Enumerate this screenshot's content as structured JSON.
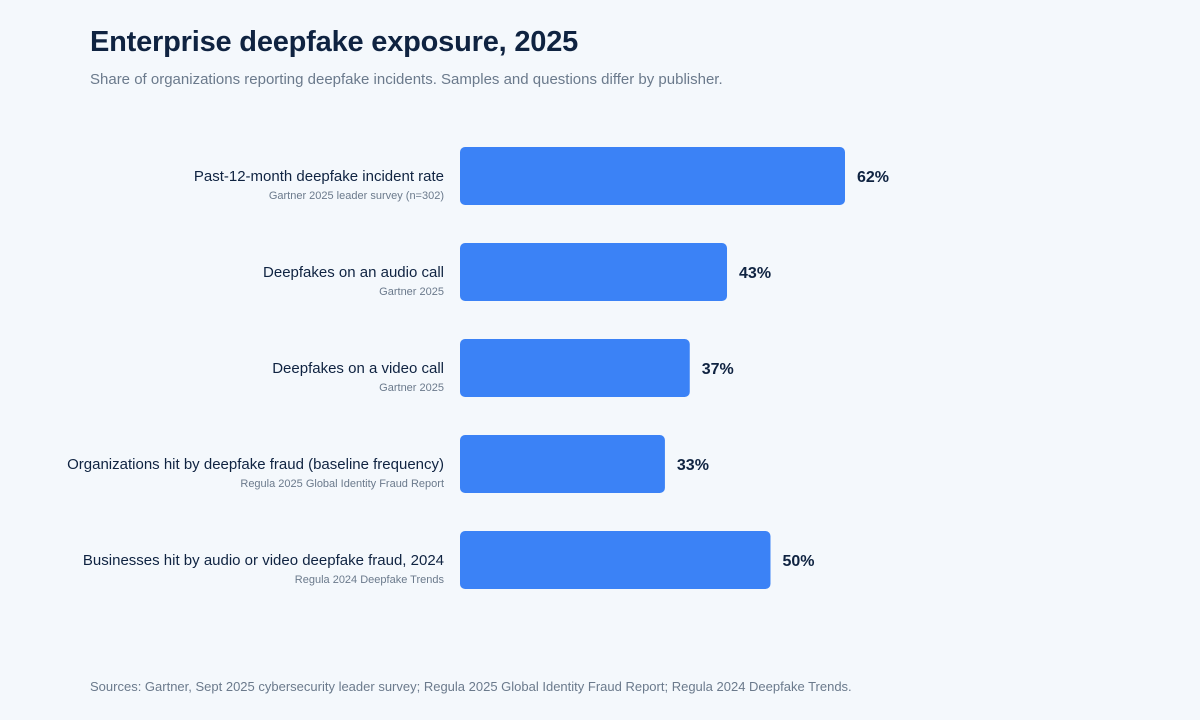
{
  "chart_data": {
    "type": "bar",
    "orientation": "horizontal",
    "title": "Enterprise deepfake exposure, 2025",
    "subtitle": "Share of organizations reporting deepfake incidents. Samples and questions differ by publisher.",
    "categories": [
      "Past-12-month deepfake incident rate",
      "Deepfakes on an audio call",
      "Deepfakes on a video call",
      "Organizations hit by deepfake fraud (baseline frequency)",
      "Businesses hit by audio or video deepfake fraud, 2024"
    ],
    "sources": [
      "Gartner 2025 leader survey (n=302)",
      "Gartner 2025",
      "Gartner 2025",
      "Regula 2025 Global Identity Fraud Report",
      "Regula 2024 Deepfake Trends"
    ],
    "values": [
      62,
      43,
      37,
      33,
      50
    ],
    "value_labels": [
      "62%",
      "43%",
      "37%",
      "33%",
      "50%"
    ],
    "unit": "%",
    "xlim": [
      0,
      100
    ],
    "bar_color": "#3b82f6",
    "grid": false,
    "legend": "none",
    "footer": "Sources: Gartner, Sept 2025 cybersecurity leader survey; Regula 2025 Global Identity Fraud Report; Regula 2024 Deepfake Trends."
  }
}
